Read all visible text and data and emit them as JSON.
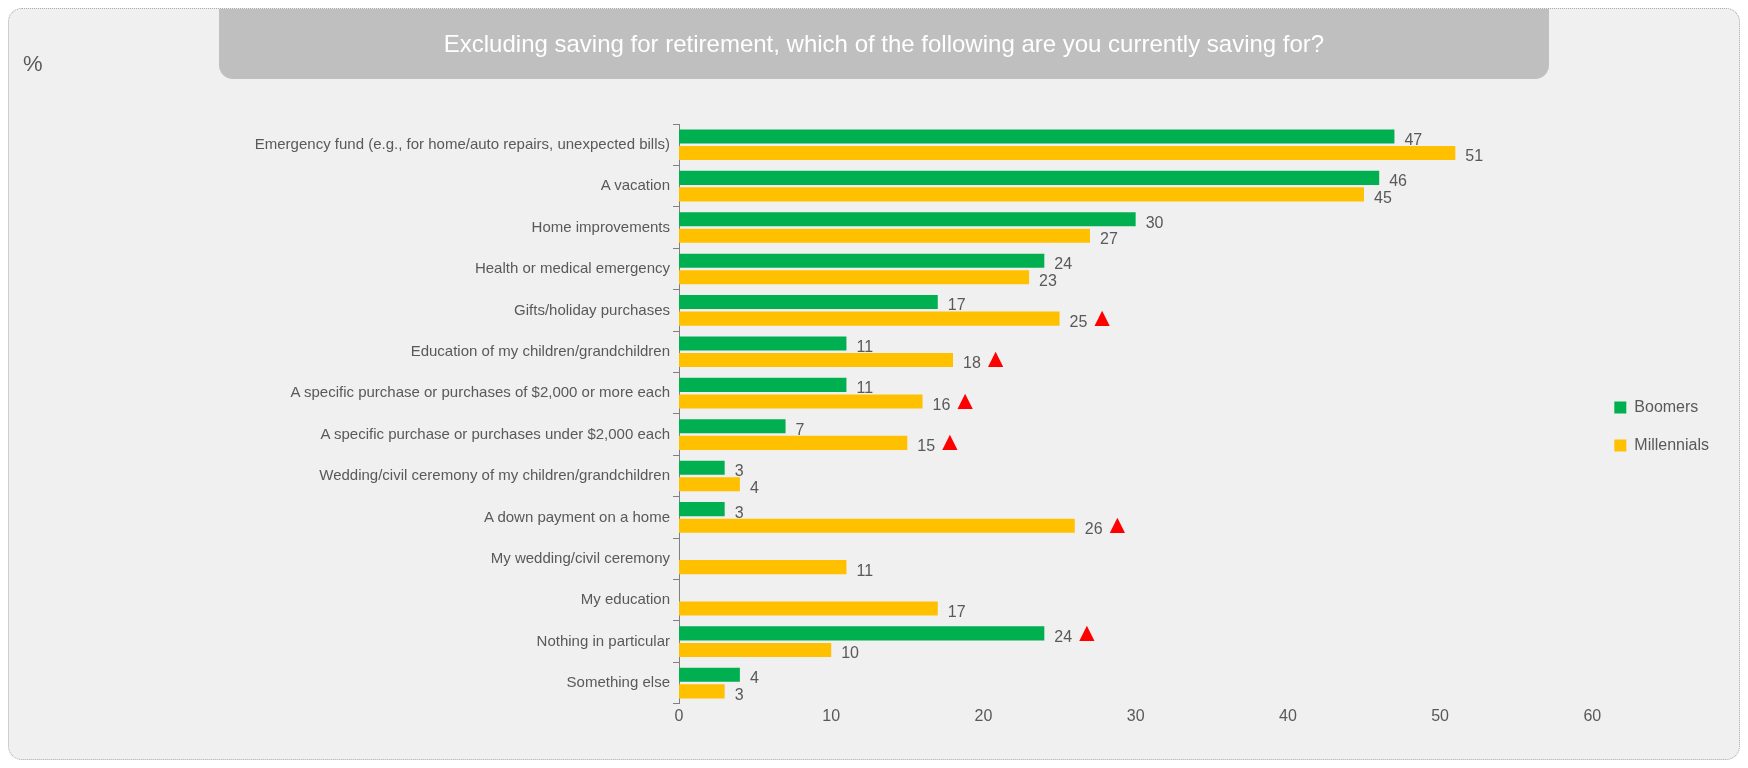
{
  "chart_data": {
    "type": "bar",
    "orientation": "horizontal",
    "title": "Excluding saving for retirement, which of the following are you currently saving for?",
    "categories": [
      "Emergency fund (e.g., for home/auto repairs, unexpected bills)",
      "A vacation",
      "Home improvements",
      "Health or medical emergency",
      "Gifts/holiday purchases",
      "Education of my children/grandchildren",
      "A specific purchase or purchases of $2,000 or more each",
      "A specific purchase or purchases under $2,000 each",
      "Wedding/civil ceremony of my children/grandchildren",
      "A down payment on a home",
      "My wedding/civil ceremony",
      "My education",
      "Nothing in particular",
      "Something else"
    ],
    "series": [
      {
        "name": "Boomers",
        "color": "#00b050",
        "values": [
          47,
          46,
          30,
          24,
          17,
          11,
          11,
          7,
          3,
          3,
          null,
          null,
          24,
          4
        ]
      },
      {
        "name": "Millennials",
        "color": "#ffc000",
        "values": [
          51,
          45,
          27,
          23,
          25,
          18,
          16,
          15,
          4,
          26,
          11,
          17,
          10,
          3
        ]
      }
    ],
    "xlim": [
      0,
      60
    ],
    "xticks": [
      0,
      10,
      20,
      30,
      40,
      50,
      60
    ],
    "data_labels": true,
    "legend": "right",
    "grid": false,
    "annotations": [
      "%",
      {
        "text": "▲",
        "x": 25,
        "y": "Gifts/holiday purchases"
      },
      {
        "text": "▲",
        "x": 18,
        "y": "Education of my children/grandchildren"
      },
      {
        "text": "▲",
        "x": 16,
        "y": "A specific purchase or purchases of $2,000 or more each"
      },
      {
        "text": "▲",
        "x": 15,
        "y": "A specific purchase or purchases under $2,000 each"
      },
      {
        "text": "▲",
        "x": 26,
        "y": "A down payment on a home"
      },
      {
        "text": "▲",
        "x": 24,
        "y": "Nothing in particular"
      }
    ]
  }
}
